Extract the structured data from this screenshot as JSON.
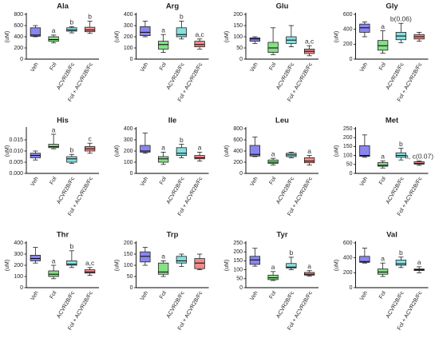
{
  "chart_data": [
    {
      "type": "box",
      "title": "Ala",
      "ylabel": "(uM)",
      "categories": [
        "Veh",
        "Fol",
        "ACVR2B/Fc",
        "Fol + ACVR2B/Fc"
      ],
      "colors": [
        "#8a86f0",
        "#86e086",
        "#86e0e0",
        "#f08a8a"
      ],
      "boxes": [
        {
          "min": 400,
          "q1": 410,
          "median": 430,
          "q3": 560,
          "max": 600
        },
        {
          "min": 290,
          "q1": 320,
          "median": 350,
          "q3": 400,
          "max": 430
        },
        {
          "min": 470,
          "q1": 500,
          "median": 520,
          "q3": 560,
          "max": 580
        },
        {
          "min": 460,
          "q1": 490,
          "median": 520,
          "q3": 570,
          "max": 680
        }
      ],
      "annotations": [
        null,
        "a",
        "b",
        "b"
      ],
      "ylim": [
        0,
        800
      ],
      "yticks": [
        0,
        200,
        400,
        600,
        800
      ]
    },
    {
      "type": "box",
      "title": "Arg",
      "ylabel": "(uM)",
      "categories": [
        "Veh",
        "Fol",
        "ACVR2B/Fc",
        "Fol + ACVR2B/Fc"
      ],
      "colors": [
        "#8a86f0",
        "#86e086",
        "#86e0e0",
        "#f08a8a"
      ],
      "boxes": [
        {
          "min": 200,
          "q1": 210,
          "median": 240,
          "q3": 290,
          "max": 340
        },
        {
          "min": 60,
          "q1": 90,
          "median": 130,
          "q3": 160,
          "max": 220
        },
        {
          "min": 180,
          "q1": 200,
          "median": 220,
          "q3": 280,
          "max": 340
        },
        {
          "min": 90,
          "q1": 110,
          "median": 130,
          "q3": 160,
          "max": 180
        }
      ],
      "annotations": [
        null,
        "a",
        "b",
        "a,c"
      ],
      "ylim": [
        0,
        400
      ],
      "yticks": [
        0,
        100,
        200,
        300,
        400
      ]
    },
    {
      "type": "box",
      "title": "Glu",
      "ylabel": "(uM)",
      "categories": [
        "Veh",
        "Fol",
        "ACVR2B/Fc",
        "Fol + ACVR2B/Fc"
      ],
      "colors": [
        "#8a86f0",
        "#86e086",
        "#86e0e0",
        "#f08a8a"
      ],
      "boxes": [
        {
          "min": 70,
          "q1": 80,
          "median": 90,
          "q3": 95,
          "max": 100
        },
        {
          "min": 20,
          "q1": 30,
          "median": 50,
          "q3": 75,
          "max": 140
        },
        {
          "min": 55,
          "q1": 70,
          "median": 85,
          "q3": 100,
          "max": 150
        },
        {
          "min": 15,
          "q1": 25,
          "median": 35,
          "q3": 45,
          "max": 60
        }
      ],
      "annotations": [
        null,
        null,
        null,
        "a,c"
      ],
      "ylim": [
        0,
        200
      ],
      "yticks": [
        0,
        50,
        100,
        150,
        200
      ]
    },
    {
      "type": "box",
      "title": "Gly",
      "ylabel": "(uM)",
      "categories": [
        "Veh",
        "Fol",
        "ACVR2B/Fc",
        "Fol + ACVR2B/Fc"
      ],
      "colors": [
        "#8a86f0",
        "#86e086",
        "#86e0e0",
        "#f08a8a"
      ],
      "boxes": [
        {
          "min": 300,
          "q1": 360,
          "median": 420,
          "q3": 470,
          "max": 500
        },
        {
          "min": 80,
          "q1": 120,
          "median": 180,
          "q3": 250,
          "max": 380
        },
        {
          "min": 220,
          "q1": 260,
          "median": 310,
          "q3": 360,
          "max": 480
        },
        {
          "min": 240,
          "q1": 270,
          "median": 300,
          "q3": 330,
          "max": 360
        }
      ],
      "annotations": [
        null,
        "a",
        "b(0.06)",
        null
      ],
      "ylim": [
        0,
        600
      ],
      "yticks": [
        0,
        200,
        400,
        600
      ]
    },
    {
      "type": "box",
      "title": "His",
      "ylabel": "(uM)",
      "categories": [
        "Veh",
        "Fol",
        "ACVR2B/Fc",
        "Fol + ACVR2B/Fc"
      ],
      "colors": [
        "#8a86f0",
        "#86e086",
        "#86e0e0",
        "#f08a8a"
      ],
      "boxes": [
        {
          "min": 0.006,
          "q1": 0.007,
          "median": 0.008,
          "q3": 0.009,
          "max": 0.01
        },
        {
          "min": 0.011,
          "q1": 0.0115,
          "median": 0.012,
          "q3": 0.013,
          "max": 0.0175
        },
        {
          "min": 0.0045,
          "q1": 0.005,
          "median": 0.0065,
          "q3": 0.0075,
          "max": 0.0085
        },
        {
          "min": 0.009,
          "q1": 0.01,
          "median": 0.011,
          "q3": 0.012,
          "max": 0.0135
        }
      ],
      "annotations": [
        null,
        "a",
        "b",
        "c"
      ],
      "ylim": [
        0,
        0.02
      ],
      "yticks": [
        {
          "value": 0,
          "label": "0.000"
        },
        {
          "value": 0.005,
          "label": "0.005"
        },
        {
          "value": 0.01,
          "label": "0.010"
        },
        {
          "value": 0.015,
          "label": "0.015"
        }
      ]
    },
    {
      "type": "box",
      "title": "Ile",
      "ylabel": "(uM)",
      "categories": [
        "Veh",
        "Fol",
        "ACVR2B/Fc",
        "Fol + ACVR2B/Fc"
      ],
      "colors": [
        "#8a86f0",
        "#86e086",
        "#86e0e0",
        "#f08a8a"
      ],
      "boxes": [
        {
          "min": 180,
          "q1": 190,
          "median": 200,
          "q3": 250,
          "max": 360
        },
        {
          "min": 80,
          "q1": 100,
          "median": 130,
          "q3": 150,
          "max": 190
        },
        {
          "min": 140,
          "q1": 160,
          "median": 180,
          "q3": 230,
          "max": 260
        },
        {
          "min": 110,
          "q1": 130,
          "median": 140,
          "q3": 160,
          "max": 190
        }
      ],
      "annotations": [
        null,
        "a",
        "b",
        "a"
      ],
      "ylim": [
        0,
        400
      ],
      "yticks": [
        0,
        100,
        200,
        300,
        400
      ]
    },
    {
      "type": "box",
      "title": "Leu",
      "ylabel": "(uM)",
      "categories": [
        "Veh",
        "Fol",
        "ACVR2B/Fc",
        "Fol + ACVR2B/Fc"
      ],
      "colors": [
        "#8a86f0",
        "#86e086",
        "#86e0e0",
        "#f08a8a"
      ],
      "boxes": [
        {
          "min": 300,
          "q1": 310,
          "median": 340,
          "q3": 500,
          "max": 650
        },
        {
          "min": 150,
          "q1": 180,
          "median": 200,
          "q3": 240,
          "max": 270
        },
        {
          "min": 280,
          "q1": 300,
          "median": 330,
          "q3": 360,
          "max": 380
        },
        {
          "min": 150,
          "q1": 190,
          "median": 220,
          "q3": 280,
          "max": 320
        }
      ],
      "annotations": [
        null,
        "a",
        null,
        "a"
      ],
      "ylim": [
        0,
        800
      ],
      "yticks": [
        0,
        200,
        400,
        600,
        800
      ]
    },
    {
      "type": "box",
      "title": "Met",
      "ylabel": "(uM)",
      "categories": [
        "Veh",
        "Fol",
        "ACVR2B/Fc",
        "Fol + ACVR2B/Fc"
      ],
      "colors": [
        "#8a86f0",
        "#86e086",
        "#86e0e0",
        "#f08a8a"
      ],
      "boxes": [
        {
          "min": 90,
          "q1": 95,
          "median": 100,
          "q3": 155,
          "max": 215
        },
        {
          "min": 30,
          "q1": 40,
          "median": 45,
          "q3": 60,
          "max": 70
        },
        {
          "min": 75,
          "q1": 90,
          "median": 100,
          "q3": 115,
          "max": 140
        },
        {
          "min": 45,
          "q1": 52,
          "median": 55,
          "q3": 65,
          "max": 70
        }
      ],
      "annotations": [
        null,
        "a",
        "b",
        "a, c(0.07)"
      ],
      "ylim": [
        0,
        250
      ],
      "yticks": [
        0,
        50,
        100,
        150,
        200,
        250
      ]
    },
    {
      "type": "box",
      "title": "Thr",
      "ylabel": "(uM)",
      "categories": [
        "Veh",
        "Fol",
        "ACVR2B/Fc",
        "Fol + ACVR2B/Fc"
      ],
      "colors": [
        "#8a86f0",
        "#86e086",
        "#86e0e0",
        "#f08a8a"
      ],
      "boxes": [
        {
          "min": 220,
          "q1": 240,
          "median": 260,
          "q3": 290,
          "max": 360
        },
        {
          "min": 80,
          "q1": 100,
          "median": 120,
          "q3": 150,
          "max": 200
        },
        {
          "min": 180,
          "q1": 200,
          "median": 210,
          "q3": 240,
          "max": 330
        },
        {
          "min": 110,
          "q1": 130,
          "median": 140,
          "q3": 160,
          "max": 180
        }
      ],
      "annotations": [
        null,
        "a",
        "b",
        "a,c"
      ],
      "ylim": [
        0,
        400
      ],
      "yticks": [
        0,
        100,
        200,
        300,
        400
      ]
    },
    {
      "type": "box",
      "title": "Trp",
      "ylabel": "(uM)",
      "categories": [
        "Veh",
        "Fol",
        "ACVR2B/Fc",
        "Fol + ACVR2B/Fc"
      ],
      "colors": [
        "#8a86f0",
        "#86e086",
        "#86e0e0",
        "#f08a8a"
      ],
      "boxes": [
        {
          "min": 100,
          "q1": 115,
          "median": 140,
          "q3": 160,
          "max": 180
        },
        {
          "min": 50,
          "q1": 60,
          "median": 70,
          "q3": 110,
          "max": 120
        },
        {
          "min": 95,
          "q1": 110,
          "median": 120,
          "q3": 140,
          "max": 150
        },
        {
          "min": 80,
          "q1": 85,
          "median": 110,
          "q3": 130,
          "max": 150
        }
      ],
      "annotations": [
        null,
        "a",
        null,
        null
      ],
      "ylim": [
        0,
        200
      ],
      "yticks": [
        0,
        50,
        100,
        150,
        200
      ]
    },
    {
      "type": "box",
      "title": "Tyr",
      "ylabel": "(uM)",
      "categories": [
        "Veh",
        "Fol",
        "ACVR2B/Fc",
        "Fol + ACVR2B/Fc"
      ],
      "colors": [
        "#8a86f0",
        "#86e086",
        "#86e0e0",
        "#f08a8a"
      ],
      "boxes": [
        {
          "min": 120,
          "q1": 130,
          "median": 155,
          "q3": 175,
          "max": 220
        },
        {
          "min": 40,
          "q1": 45,
          "median": 55,
          "q3": 70,
          "max": 90
        },
        {
          "min": 100,
          "q1": 110,
          "median": 115,
          "q3": 135,
          "max": 170
        },
        {
          "min": 65,
          "q1": 70,
          "median": 75,
          "q3": 85,
          "max": 95
        }
      ],
      "annotations": [
        null,
        "a",
        "b",
        "a"
      ],
      "ylim": [
        0,
        250
      ],
      "yticks": [
        0,
        50,
        100,
        150,
        200,
        250
      ]
    },
    {
      "type": "box",
      "title": "Val",
      "ylabel": "(uM)",
      "categories": [
        "Veh",
        "Fol",
        "ACVR2B/Fc",
        "Fol + ACVR2B/Fc"
      ],
      "colors": [
        "#8a86f0",
        "#86e086",
        "#86e0e0",
        "#f08a8a"
      ],
      "boxes": [
        {
          "min": 330,
          "q1": 340,
          "median": 350,
          "q3": 420,
          "max": 530
        },
        {
          "min": 150,
          "q1": 180,
          "median": 210,
          "q3": 250,
          "max": 330
        },
        {
          "min": 270,
          "q1": 300,
          "median": 320,
          "q3": 370,
          "max": 410
        },
        {
          "min": 200,
          "q1": 230,
          "median": 240,
          "q3": 250,
          "max": 280
        }
      ],
      "annotations": [
        null,
        "a",
        "b",
        "a"
      ],
      "ylim": [
        0,
        600
      ],
      "yticks": [
        0,
        200,
        400,
        600
      ]
    }
  ]
}
